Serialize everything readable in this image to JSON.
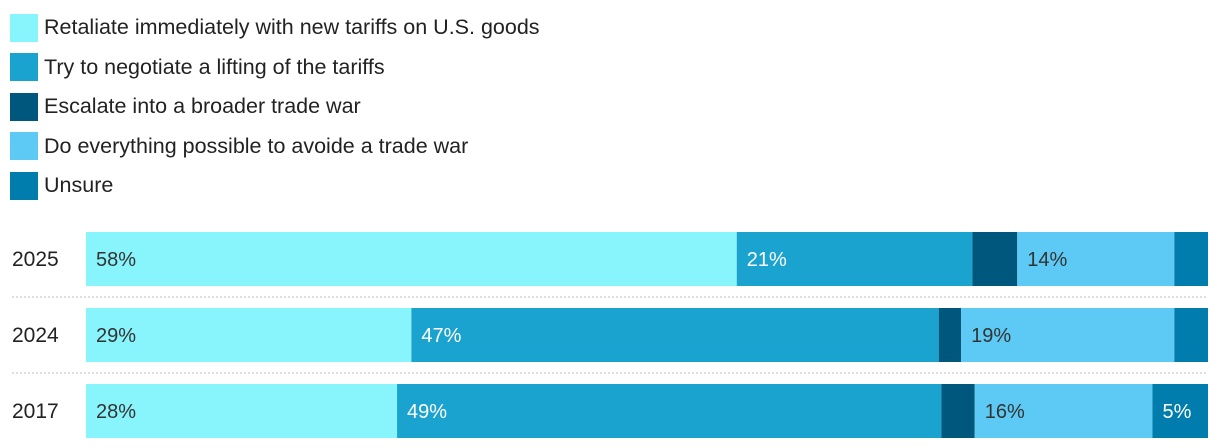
{
  "chart_data": {
    "type": "stacked-bar-horizontal",
    "series": [
      {
        "name": "Retaliate immediately with new tariffs on U.S. goods",
        "color": "#88f4fb",
        "label_color": "#333333"
      },
      {
        "name": "Try to negotiate a lifting of the tariffs",
        "color": "#1aa3cf",
        "label_color": "#ffffff"
      },
      {
        "name": "Escalate into a broader trade war",
        "color": "#00577d",
        "label_color": "#ffffff"
      },
      {
        "name": "Do everything possible to avoide a trade war",
        "color": "#5ccaf4",
        "label_color": "#333333"
      },
      {
        "name": "Unsure",
        "color": "#007dad",
        "label_color": "#ffffff"
      }
    ],
    "categories": [
      "2025",
      "2024",
      "2017"
    ],
    "rows": [
      {
        "year": "2025",
        "values": [
          58,
          21,
          4,
          14,
          3
        ],
        "labels": [
          "58%",
          "21%",
          "",
          "14%",
          ""
        ]
      },
      {
        "year": "2024",
        "values": [
          29,
          47,
          2,
          19,
          3
        ],
        "labels": [
          "29%",
          "47%",
          "",
          "19%",
          ""
        ]
      },
      {
        "year": "2017",
        "values": [
          28,
          49,
          3,
          16,
          5
        ],
        "labels": [
          "28%",
          "49%",
          "",
          "16%",
          "5%"
        ]
      }
    ]
  }
}
